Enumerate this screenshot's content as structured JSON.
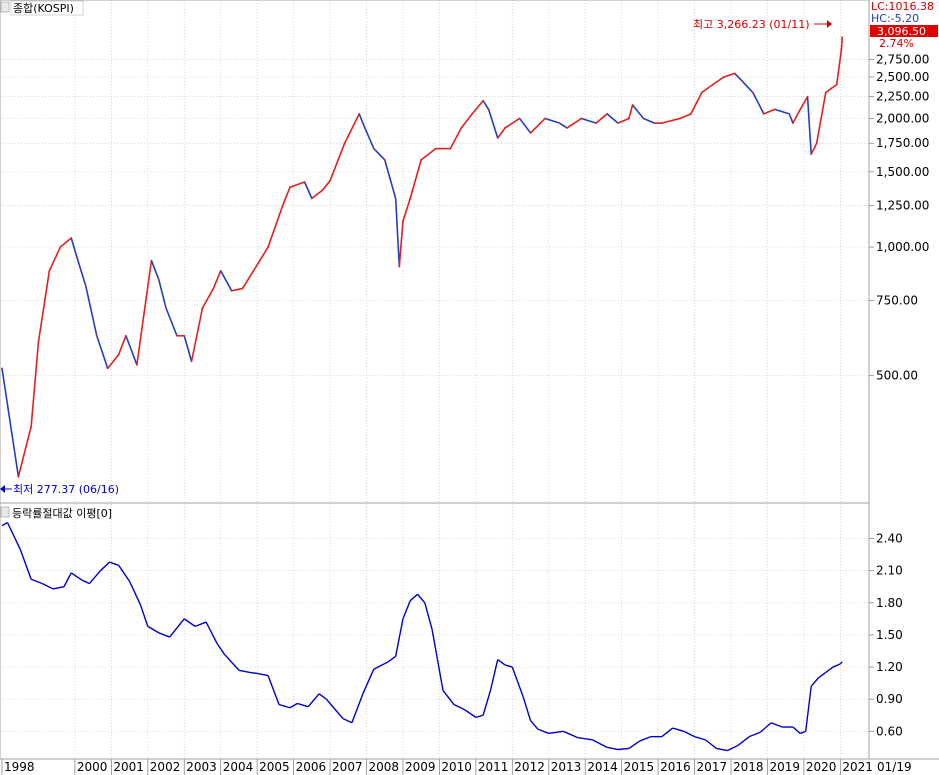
{
  "upper_panel": {
    "title": "종합(KOSPI)",
    "lc_label": "LC:1016.38",
    "hc_label": "HC:-5.20",
    "last_value_label": "3,096.50",
    "change_label": "2.74%",
    "max_annotation": "최고 3,266.23 (01/11)",
    "min_annotation": "최저 277.37 (06/16)"
  },
  "lower_panel": {
    "title": "등락률절대값 이평[0]"
  },
  "x_axis_end_label": "01/19",
  "colors": {
    "up": "#e02020",
    "down": "#2040c0",
    "indicator": "#0000c8",
    "annotation": "#d00000",
    "min_annotation": "#0000c8",
    "last_value_bg": "#e00000",
    "grid": "#c8c8c8",
    "lc": "#d00000",
    "hc": "#2040c0"
  },
  "chart_data": [
    {
      "type": "line",
      "name": "upper",
      "scale": "log",
      "ylim": [
        260,
        3400
      ],
      "y_ticks": [
        {
          "v": 500,
          "label": "500.00"
        },
        {
          "v": 750,
          "label": "750.00"
        },
        {
          "v": 1000,
          "label": "1,000.00"
        },
        {
          "v": 1250,
          "label": "1,250.00"
        },
        {
          "v": 1500,
          "label": "1,500.00"
        },
        {
          "v": 1750,
          "label": "1,750.00"
        },
        {
          "v": 2000,
          "label": "2,000.00"
        },
        {
          "v": 2250,
          "label": "2,250.00"
        },
        {
          "v": 2500,
          "label": "2,500.00"
        },
        {
          "v": 2750,
          "label": "2,750.00"
        }
      ],
      "x": [
        1998.0,
        1998.45,
        1998.8,
        1999.0,
        1999.3,
        1999.6,
        1999.9,
        2000.05,
        2000.3,
        2000.6,
        2000.9,
        2001.2,
        2001.4,
        2001.7,
        2002.1,
        2002.3,
        2002.5,
        2002.8,
        2003.0,
        2003.2,
        2003.5,
        2003.8,
        2004.0,
        2004.3,
        2004.6,
        2004.9,
        2005.3,
        2005.7,
        2005.9,
        2006.3,
        2006.5,
        2006.8,
        2007.0,
        2007.4,
        2007.8,
        2007.9,
        2008.2,
        2008.5,
        2008.8,
        2008.9,
        2009.0,
        2009.2,
        2009.5,
        2009.9,
        2010.3,
        2010.6,
        2010.9,
        2011.2,
        2011.35,
        2011.6,
        2011.8,
        2012.2,
        2012.5,
        2012.9,
        2013.3,
        2013.5,
        2013.9,
        2014.3,
        2014.6,
        2014.9,
        2015.2,
        2015.3,
        2015.6,
        2015.9,
        2016.1,
        2016.6,
        2016.9,
        2017.2,
        2017.5,
        2017.8,
        2018.1,
        2018.3,
        2018.6,
        2018.9,
        2019.2,
        2019.6,
        2019.7,
        2019.9,
        2020.1,
        2020.2,
        2020.35,
        2020.6,
        2020.75,
        2020.9,
        2021.03,
        2021.05
      ],
      "values": [
        520,
        290,
        380,
        600,
        880,
        1000,
        1050,
        950,
        810,
        620,
        520,
        560,
        620,
        530,
        930,
        840,
        720,
        620,
        620,
        540,
        720,
        800,
        880,
        790,
        800,
        880,
        1000,
        1250,
        1380,
        1420,
        1300,
        1360,
        1430,
        1750,
        2050,
        1950,
        1700,
        1600,
        1300,
        900,
        1150,
        1300,
        1600,
        1700,
        1700,
        1900,
        2050,
        2200,
        2100,
        1800,
        1900,
        2000,
        1850,
        2000,
        1950,
        1900,
        2000,
        1950,
        2050,
        1950,
        2000,
        2150,
        2000,
        1950,
        1950,
        2000,
        2050,
        2300,
        2400,
        2500,
        2550,
        2450,
        2300,
        2050,
        2100,
        2050,
        1950,
        2100,
        2250,
        1650,
        1750,
        2300,
        2350,
        2400,
        2900,
        3096.5
      ]
    },
    {
      "type": "line",
      "name": "lower",
      "ylim": [
        0.36,
        2.62
      ],
      "y_ticks": [
        0.6,
        0.9,
        1.2,
        1.5,
        1.8,
        2.1,
        2.4
      ],
      "x": [
        1998.0,
        1998.15,
        1998.5,
        1998.8,
        1999.1,
        1999.4,
        1999.7,
        1999.9,
        2000.2,
        2000.4,
        2000.7,
        2000.95,
        2001.2,
        2001.5,
        2001.8,
        2002.0,
        2002.3,
        2002.6,
        2003.0,
        2003.3,
        2003.6,
        2003.9,
        2004.1,
        2004.5,
        2004.8,
        2005.0,
        2005.3,
        2005.6,
        2005.9,
        2006.1,
        2006.4,
        2006.7,
        2006.9,
        2007.1,
        2007.35,
        2007.6,
        2007.9,
        2008.2,
        2008.6,
        2008.8,
        2009.0,
        2009.2,
        2009.4,
        2009.6,
        2009.8,
        2010.1,
        2010.4,
        2010.7,
        2011.0,
        2011.2,
        2011.4,
        2011.6,
        2011.8,
        2012.0,
        2012.3,
        2012.5,
        2012.7,
        2013.0,
        2013.4,
        2013.8,
        2014.2,
        2014.6,
        2014.9,
        2015.2,
        2015.5,
        2015.8,
        2016.1,
        2016.4,
        2016.7,
        2017.0,
        2017.3,
        2017.6,
        2017.9,
        2018.2,
        2018.5,
        2018.8,
        2019.1,
        2019.4,
        2019.7,
        2019.9,
        2020.05,
        2020.2,
        2020.4,
        2020.6,
        2020.8,
        2021.0,
        2021.05
      ],
      "values": [
        2.52,
        2.55,
        2.3,
        2.02,
        1.98,
        1.93,
        1.95,
        2.08,
        2.01,
        1.98,
        2.1,
        2.18,
        2.15,
        2.0,
        1.78,
        1.58,
        1.52,
        1.48,
        1.65,
        1.58,
        1.62,
        1.42,
        1.32,
        1.17,
        1.15,
        1.14,
        1.12,
        0.85,
        0.82,
        0.86,
        0.83,
        0.95,
        0.9,
        0.82,
        0.72,
        0.68,
        0.95,
        1.18,
        1.25,
        1.3,
        1.65,
        1.82,
        1.88,
        1.8,
        1.55,
        0.98,
        0.85,
        0.8,
        0.73,
        0.75,
        0.98,
        1.27,
        1.22,
        1.2,
        0.92,
        0.7,
        0.62,
        0.58,
        0.6,
        0.54,
        0.52,
        0.45,
        0.43,
        0.44,
        0.51,
        0.55,
        0.55,
        0.63,
        0.6,
        0.55,
        0.52,
        0.44,
        0.42,
        0.47,
        0.55,
        0.59,
        0.68,
        0.64,
        0.64,
        0.58,
        0.6,
        1.02,
        1.1,
        1.15,
        1.2,
        1.23,
        1.25
      ]
    }
  ],
  "x_axis": {
    "labels": [
      "1998",
      "2000",
      "2001",
      "2002",
      "2003",
      "2004",
      "2005",
      "2006",
      "2007",
      "2008",
      "2009",
      "2010",
      "2011",
      "2012",
      "2013",
      "2014",
      "2015",
      "2016",
      "2017",
      "2018",
      "2019",
      "2020",
      "2021"
    ]
  }
}
